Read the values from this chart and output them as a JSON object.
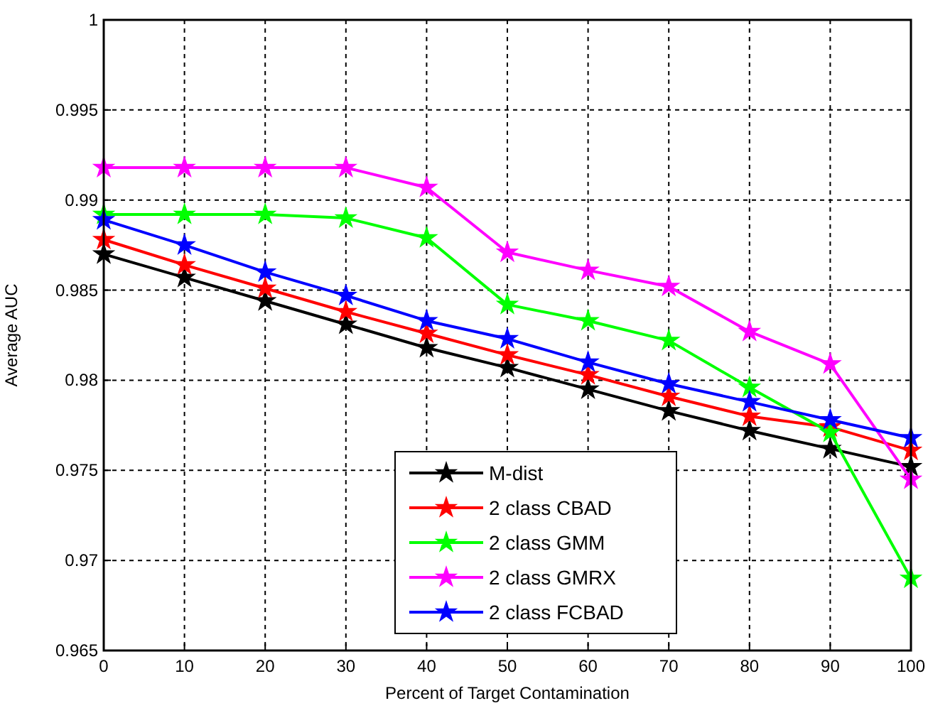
{
  "chart_data": {
    "type": "line",
    "xlabel": "Percent of Target Contamination",
    "ylabel": "Average AUC",
    "x": [
      0,
      10,
      20,
      30,
      40,
      50,
      60,
      70,
      80,
      90,
      100
    ],
    "xlim": [
      0,
      100
    ],
    "xticks": [
      0,
      10,
      20,
      30,
      40,
      50,
      60,
      70,
      80,
      90,
      100
    ],
    "ylim": [
      0.965,
      1
    ],
    "yticks": [
      0.965,
      0.97,
      0.975,
      0.98,
      0.985,
      0.99,
      0.995,
      1
    ],
    "grid": true,
    "legend": "bottom",
    "marker": "star",
    "line_style": "solid",
    "series": [
      {
        "name": "M-dist",
        "color": "#000000",
        "values": [
          0.987,
          0.9857,
          0.9844,
          0.9831,
          0.9818,
          0.9807,
          0.9795,
          0.9783,
          0.9772,
          0.9762,
          0.9752
        ]
      },
      {
        "name": "2 class CBAD",
        "color": "#ff0000",
        "values": [
          0.9878,
          0.9864,
          0.9851,
          0.9838,
          0.9826,
          0.9814,
          0.9803,
          0.9791,
          0.978,
          0.9774,
          0.9761
        ]
      },
      {
        "name": "2 class GMM",
        "color": "#00ff00",
        "values": [
          0.9892,
          0.9892,
          0.9892,
          0.989,
          0.9879,
          0.9842,
          0.9833,
          0.9822,
          0.9796,
          0.9771,
          0.969
        ]
      },
      {
        "name": "2 class GMRX",
        "color": "#ff00ff",
        "values": [
          0.9918,
          0.9918,
          0.9918,
          0.9918,
          0.9907,
          0.9871,
          0.9861,
          0.9852,
          0.9827,
          0.9809,
          0.9745
        ]
      },
      {
        "name": "2 class FCBAD",
        "color": "#0000ff",
        "values": [
          0.9889,
          0.9875,
          0.986,
          0.9847,
          0.9833,
          0.9823,
          0.981,
          0.9798,
          0.9788,
          0.9778,
          0.9768
        ]
      }
    ]
  }
}
